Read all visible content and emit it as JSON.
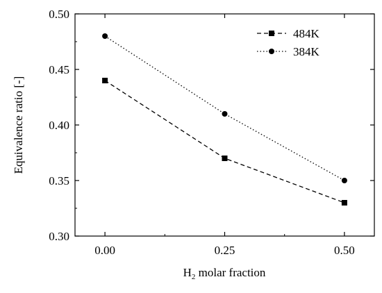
{
  "chart_data": {
    "type": "line",
    "title": "",
    "xlabel_main": "H",
    "xlabel_sub": "2",
    "xlabel_rest": " molar fraction",
    "ylabel": "Equivalence ratio [-]",
    "x": [
      0.0,
      0.25,
      0.5
    ],
    "xlim": [
      -0.0625,
      0.5625
    ],
    "ylim": [
      0.3,
      0.5
    ],
    "xticks": [
      "0.00",
      "0.25",
      "0.50"
    ],
    "xtick_values": [
      0.0,
      0.25,
      0.5
    ],
    "yticks": [
      "0.30",
      "0.35",
      "0.40",
      "0.45",
      "0.50"
    ],
    "ytick_values": [
      0.3,
      0.35,
      0.4,
      0.45,
      0.5
    ],
    "grid": false,
    "legend_position": "top-right",
    "series": [
      {
        "name": "484K",
        "values": [
          0.44,
          0.37,
          0.33
        ],
        "marker": "square",
        "line_style": "dashed",
        "color": "#000000"
      },
      {
        "name": "384K",
        "values": [
          0.48,
          0.41,
          0.35
        ],
        "marker": "circle",
        "line_style": "dotted",
        "color": "#000000"
      }
    ]
  }
}
